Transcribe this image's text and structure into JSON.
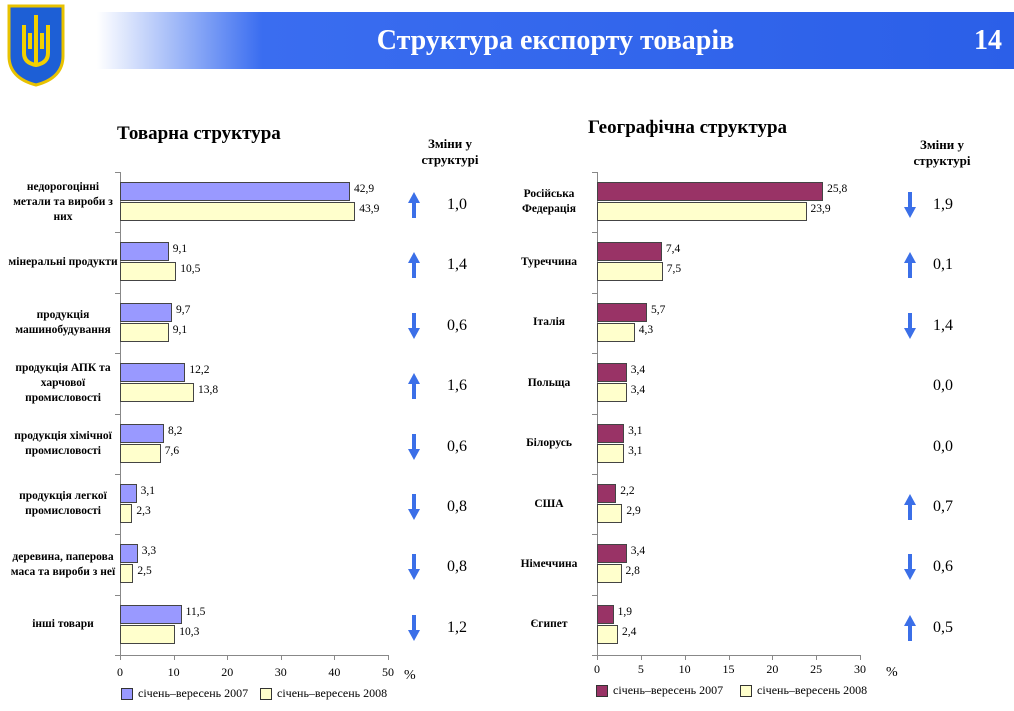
{
  "header": {
    "title": "Структура експорту товарів",
    "page": "14"
  },
  "colors": {
    "left_2007": "#9999ff",
    "right_2007": "#993366",
    "y2008": "#ffffcc",
    "arrow": "#3b6fe8"
  },
  "chart_data": [
    {
      "type": "bar",
      "orientation": "horizontal",
      "title": "Товарна структура",
      "changes_header": "Зміни у структурі",
      "xlabel": "%",
      "xlim": [
        0,
        50
      ],
      "xticks": [
        "0",
        "10",
        "20",
        "30",
        "40",
        "50"
      ],
      "categories": [
        "недорогоцінні метали та вироби з них",
        "мінеральні продукти",
        "продукція машинобудування",
        "продукція АПК та харчової промисловості",
        "продукція хімічної промисловості",
        "продукція легкої промисловості",
        "деревина, паперова маса та вироби з неї",
        "інші товари"
      ],
      "series": [
        {
          "name": "січень–вересень 2007",
          "values": [
            42.9,
            9.1,
            9.7,
            12.2,
            8.2,
            3.1,
            3.3,
            11.5
          ],
          "labels": [
            "42,9",
            "9,1",
            "9,7",
            "12,2",
            "8,2",
            "3,1",
            "3,3",
            "11,5"
          ]
        },
        {
          "name": "січень–вересень 2008",
          "values": [
            43.9,
            10.5,
            9.1,
            13.8,
            7.6,
            2.3,
            2.5,
            10.3
          ],
          "labels": [
            "43,9",
            "10,5",
            "9,1",
            "13,8",
            "7,6",
            "2,3",
            "2,5",
            "10,3"
          ]
        }
      ],
      "changes": [
        {
          "dir": "up",
          "value": "1,0"
        },
        {
          "dir": "up",
          "value": "1,4"
        },
        {
          "dir": "down",
          "value": "0,6"
        },
        {
          "dir": "up",
          "value": "1,6"
        },
        {
          "dir": "down",
          "value": "0,6"
        },
        {
          "dir": "down",
          "value": "0,8"
        },
        {
          "dir": "down",
          "value": "0,8"
        },
        {
          "dir": "down",
          "value": "1,2"
        }
      ]
    },
    {
      "type": "bar",
      "orientation": "horizontal",
      "title": "Географічна структура",
      "changes_header": "Зміни у структурі",
      "xlabel": "%",
      "xlim": [
        0,
        30
      ],
      "xticks": [
        "0",
        "5",
        "10",
        "15",
        "20",
        "25",
        "30"
      ],
      "categories": [
        "Російська Федерація",
        "Туреччина",
        "Італія",
        "Польща",
        "Білорусь",
        "США",
        "Німеччина",
        "Єгипет"
      ],
      "series": [
        {
          "name": "січень–вересень 2007",
          "values": [
            25.8,
            7.4,
            5.7,
            3.4,
            3.1,
            2.2,
            3.4,
            1.9
          ],
          "labels": [
            "25,8",
            "7,4",
            "5,7",
            "3,4",
            "3,1",
            "2,2",
            "3,4",
            "1,9"
          ]
        },
        {
          "name": "січень–вересень 2008",
          "values": [
            23.9,
            7.5,
            4.3,
            3.4,
            3.1,
            2.9,
            2.8,
            2.4
          ],
          "labels": [
            "23,9",
            "7,5",
            "4,3",
            "3,4",
            "3,1",
            "2,9",
            "2,8",
            "2,4"
          ]
        }
      ],
      "changes": [
        {
          "dir": "down",
          "value": "1,9"
        },
        {
          "dir": "up",
          "value": "0,1"
        },
        {
          "dir": "down",
          "value": "1,4"
        },
        {
          "dir": "none",
          "value": "0,0"
        },
        {
          "dir": "none",
          "value": "0,0"
        },
        {
          "dir": "up",
          "value": "0,7"
        },
        {
          "dir": "down",
          "value": "0,6"
        },
        {
          "dir": "up",
          "value": "0,5"
        }
      ]
    }
  ]
}
